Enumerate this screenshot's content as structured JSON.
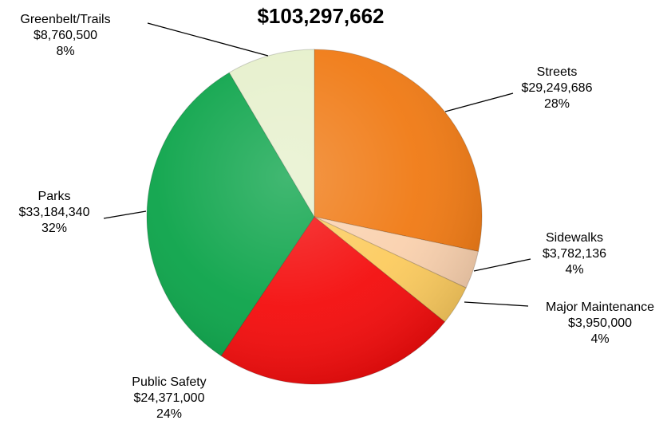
{
  "chart_data": {
    "type": "pie",
    "title": "$103,297,662",
    "slices": [
      {
        "name": "Streets",
        "value": 29249686,
        "amount": "$29,249,686",
        "percent": "28%",
        "color": "#F07A14"
      },
      {
        "name": "Sidewalks",
        "value": 3782136,
        "amount": "$3,782,136",
        "percent": "4%",
        "color": "#FAD1AE"
      },
      {
        "name": "Major Maintenance",
        "value": 3950000,
        "amount": "$3,950,000",
        "percent": "4%",
        "color": "#FCCB5E"
      },
      {
        "name": "Public Safety",
        "value": 24371000,
        "amount": "$24,371,000",
        "percent": "24%",
        "color": "#F40D0D"
      },
      {
        "name": "Parks",
        "value": 33184340,
        "amount": "$33,184,340",
        "percent": "32%",
        "color": "#0CA44A"
      },
      {
        "name": "Greenbelt/Trails",
        "value": 8760500,
        "amount": "$8,760,500",
        "percent": "8%",
        "color": "#E6F0CC"
      }
    ],
    "start_angle": "12 o'clock",
    "direction": "clockwise",
    "legend": "none",
    "data_labels": "outside with leader lines"
  }
}
